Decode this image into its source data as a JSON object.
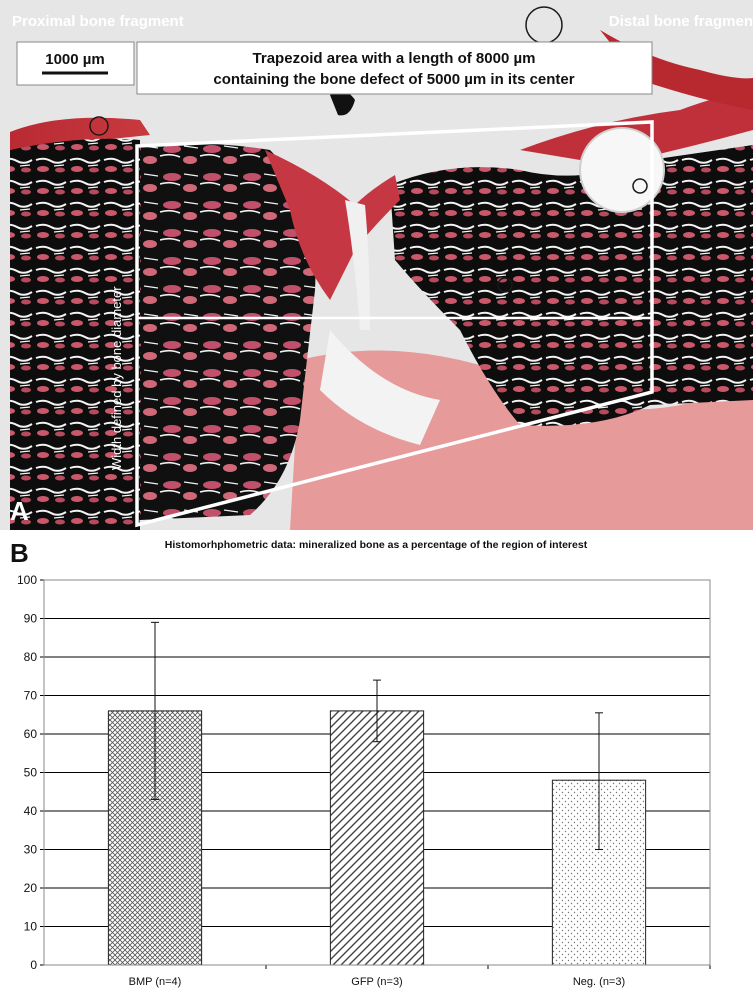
{
  "panel_a": {
    "label": "A",
    "proximal_label": "Proximal bone fragment",
    "distal_label": "Distal bone fragmen",
    "scale_bar_label": "1000 µm",
    "caption_line1": "Trapezoid area with a length of 8000 µm",
    "caption_line2": "containing the bone defect of 5000 µm in its center",
    "width_label": "Width defined by bone diameter",
    "colors": {
      "tissue_red": "#c0303a",
      "bone_black": "#0d0d0d",
      "stroma_pink": "#e08a8a",
      "background": "#e9e9e9"
    }
  },
  "panel_b": {
    "label": "B",
    "title": "Histomorhphometric data: mineralized bone as a percentage of the region of interest"
  },
  "chart_data": {
    "type": "bar",
    "title": "Histomorhphometric data: mineralized bone as a percentage of the region of interest",
    "xlabel": "",
    "ylabel": "",
    "ylim": [
      0,
      100
    ],
    "yticks": [
      0,
      10,
      20,
      30,
      40,
      50,
      60,
      70,
      80,
      90,
      100
    ],
    "grid": true,
    "categories": [
      "BMP (n=4)",
      "GFP (n=3)",
      "Neg. (n=3)"
    ],
    "values": [
      66,
      66,
      48
    ],
    "error_low": [
      43,
      58,
      30
    ],
    "error_high": [
      89,
      74,
      65.5
    ],
    "patterns": [
      "crosshatch",
      "diagonal",
      "dots"
    ]
  }
}
